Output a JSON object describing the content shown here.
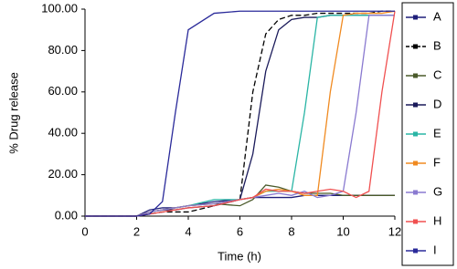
{
  "chart_data": {
    "type": "line",
    "x_label": "Time (h)",
    "y_label": "% Drug release",
    "x": [
      0,
      1,
      2,
      2.5,
      3,
      3.5,
      4,
      5,
      6,
      6.5,
      7,
      7.5,
      8,
      8.5,
      9,
      9.5,
      10,
      10.5,
      11,
      11.5,
      12
    ],
    "xlim": [
      0,
      12
    ],
    "xticks": [
      0,
      2,
      4,
      6,
      8,
      10,
      12
    ],
    "ylim": [
      0,
      100
    ],
    "yticks": [
      {
        "value": 0,
        "label": "0.00"
      },
      {
        "value": 20,
        "label": "20.00"
      },
      {
        "value": 40,
        "label": "40.00"
      },
      {
        "value": 60,
        "label": "60.00"
      },
      {
        "value": 80,
        "label": "80.00"
      },
      {
        "value": 100,
        "label": "100.00"
      }
    ],
    "legend": "right",
    "series": [
      {
        "name": "A",
        "color": "#1f1f7a",
        "values": [
          0,
          0,
          0,
          3,
          4,
          4,
          5,
          7,
          8,
          9,
          9,
          9,
          9,
          10,
          10,
          10,
          10,
          10,
          10,
          10,
          10
        ]
      },
      {
        "name": "B",
        "color": "#000000",
        "dash": true,
        "values": [
          0,
          0,
          0,
          1,
          2,
          2,
          2,
          5,
          8,
          60,
          88,
          95,
          97,
          97,
          98,
          98,
          98,
          98,
          98,
          99,
          99
        ]
      },
      {
        "name": "C",
        "color": "#4a5a2a",
        "values": [
          0,
          0,
          0,
          2,
          3,
          4,
          5,
          6,
          5,
          8,
          15,
          14,
          12,
          11,
          11,
          11,
          10,
          10,
          10,
          10,
          10
        ]
      },
      {
        "name": "D",
        "color": "#1a1a5a",
        "values": [
          0,
          0,
          0,
          2,
          3,
          3,
          4,
          5,
          8,
          30,
          70,
          90,
          95,
          96,
          96,
          97,
          97,
          97,
          97,
          97,
          97
        ]
      },
      {
        "name": "E",
        "color": "#2ab5a5",
        "values": [
          0,
          0,
          0,
          2,
          3,
          4,
          5,
          8,
          8,
          9,
          12,
          12,
          12,
          50,
          96,
          97,
          97,
          97,
          97,
          97,
          97
        ]
      },
      {
        "name": "F",
        "color": "#f08a20",
        "values": [
          0,
          0,
          0,
          2,
          3,
          4,
          5,
          6,
          8,
          9,
          12,
          13,
          12,
          10,
          10,
          60,
          97,
          98,
          98,
          98,
          99
        ]
      },
      {
        "name": "G",
        "color": "#8a7ad0",
        "values": [
          0,
          0,
          0,
          2,
          3,
          4,
          5,
          6,
          8,
          9,
          10,
          11,
          10,
          12,
          9,
          10,
          12,
          50,
          97,
          97,
          97
        ]
      },
      {
        "name": "H",
        "color": "#f05050",
        "values": [
          0,
          0,
          0,
          1,
          2,
          3,
          4,
          5,
          8,
          9,
          13,
          12,
          12,
          11,
          12,
          13,
          12,
          9,
          12,
          60,
          99
        ]
      },
      {
        "name": "I",
        "color": "#2a2a9a",
        "values": [
          0,
          0,
          0,
          1,
          7,
          50,
          90,
          98,
          99,
          99,
          99,
          99,
          99,
          99,
          99,
          99,
          99,
          99,
          99,
          99,
          99
        ]
      }
    ]
  }
}
